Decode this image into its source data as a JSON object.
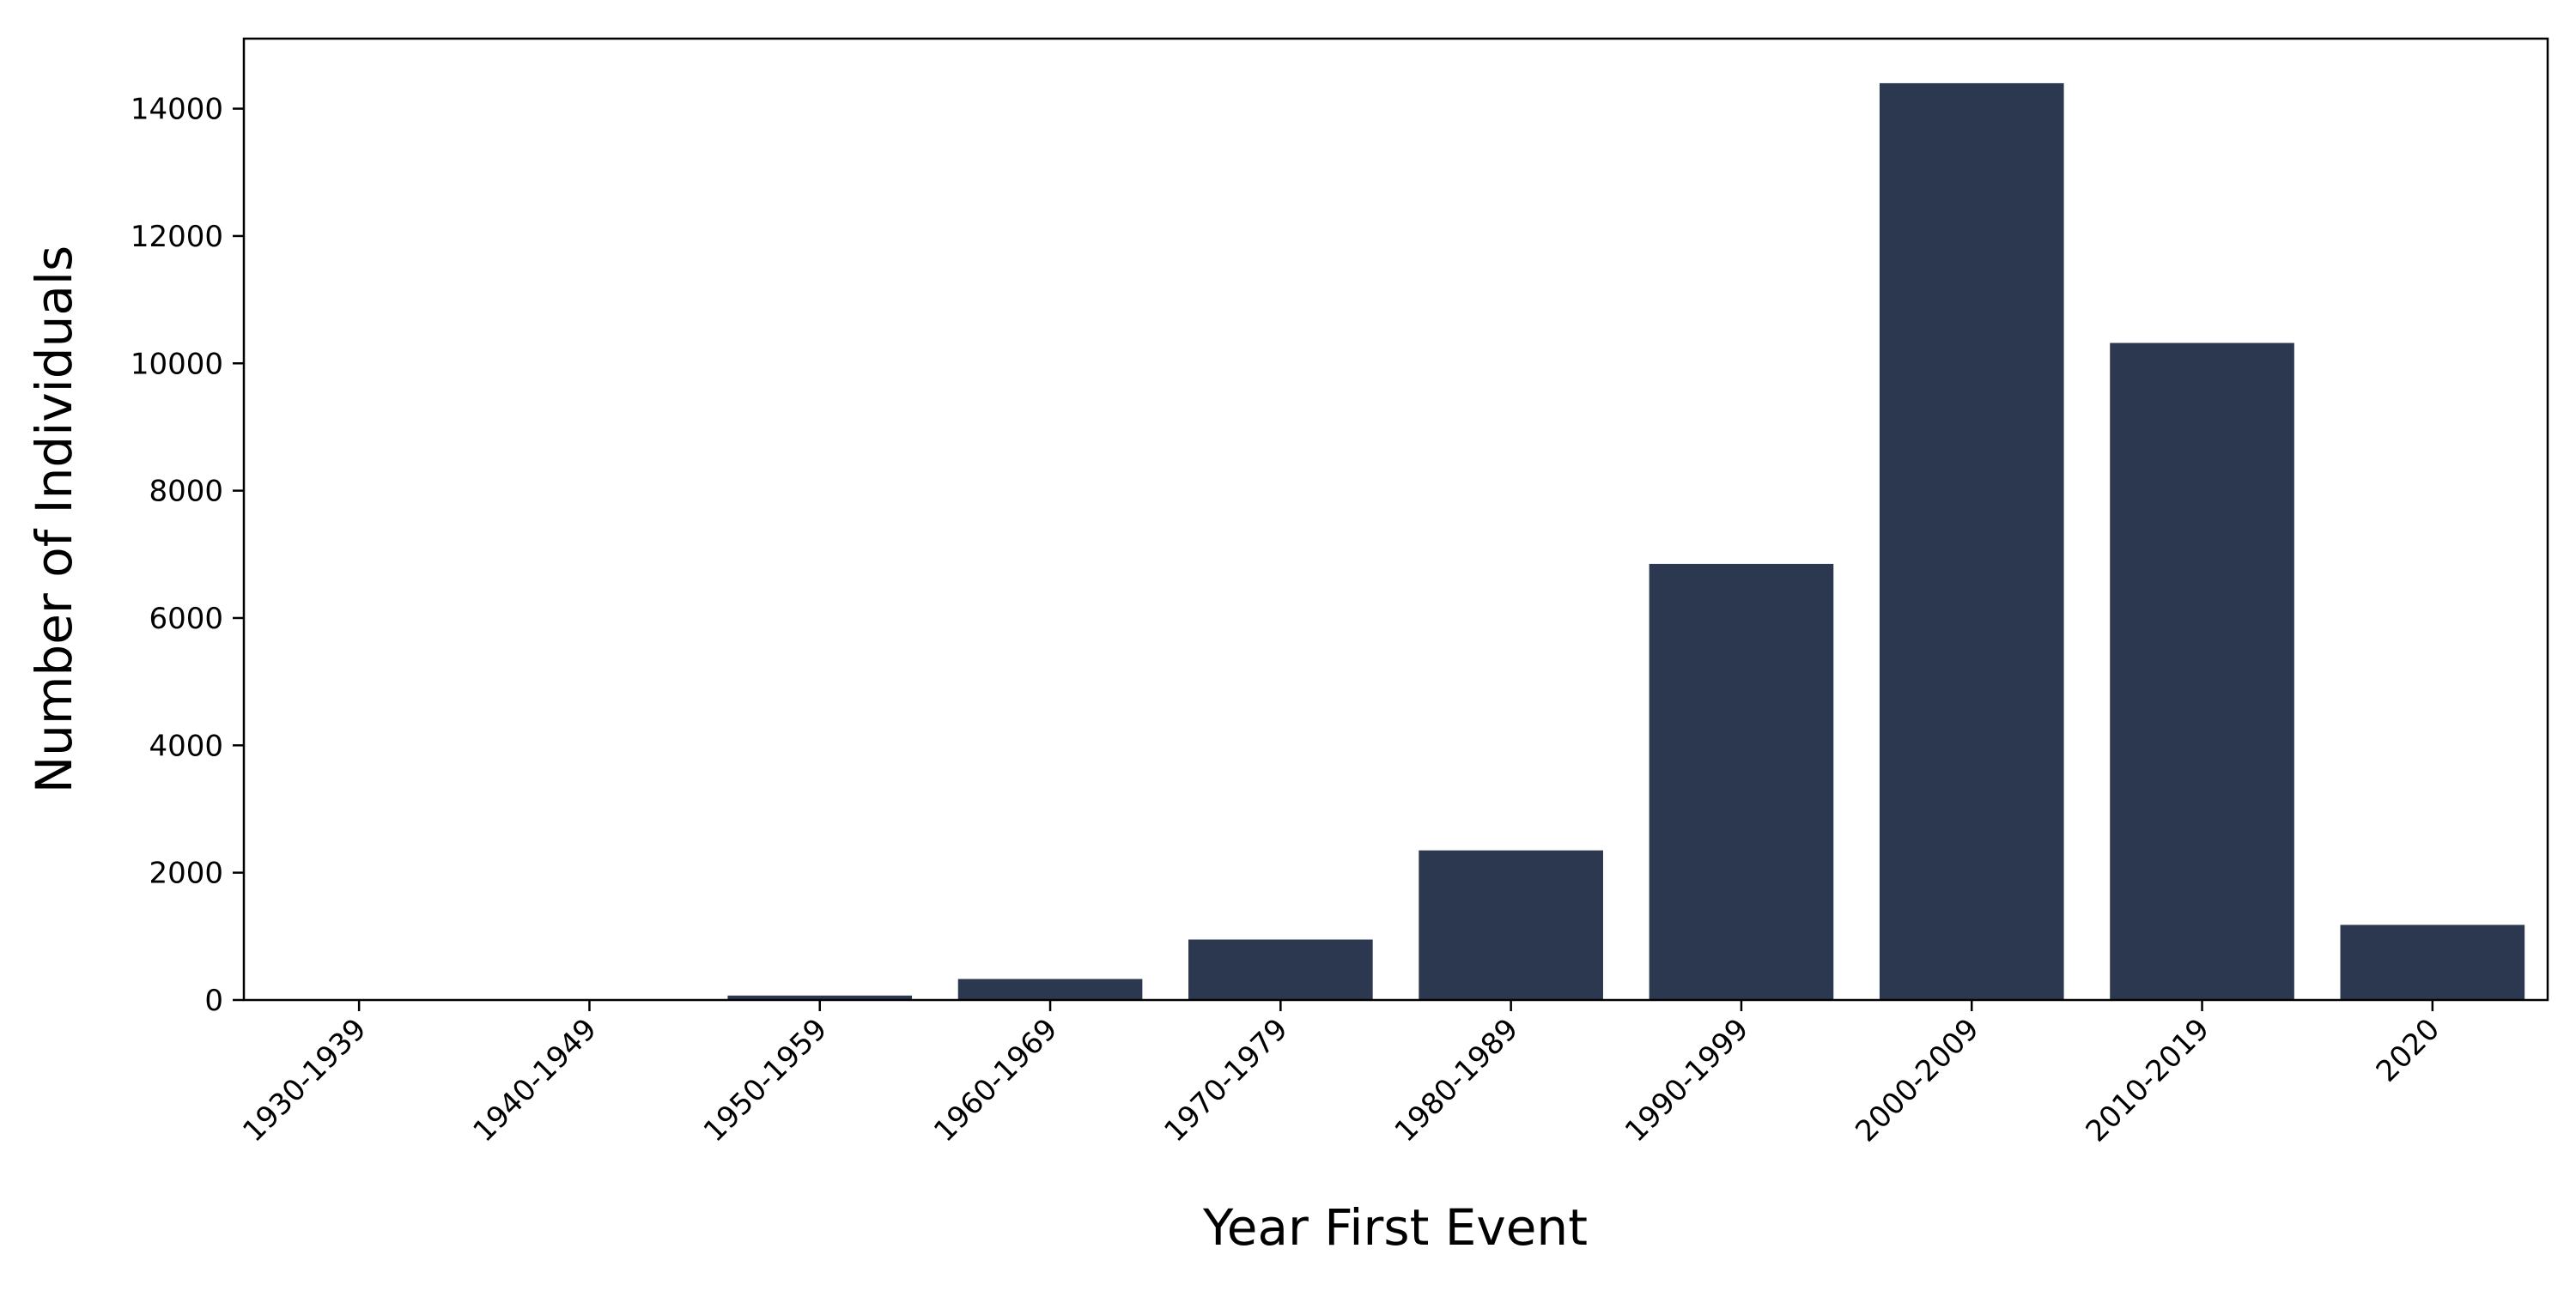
{
  "chart_data": {
    "type": "bar",
    "categories": [
      "1930-1939",
      "1940-1949",
      "1950-1959",
      "1960-1969",
      "1970-1979",
      "1980-1989",
      "1990-1999",
      "2000-2009",
      "2010-2019",
      "2020"
    ],
    "values": [
      3,
      8,
      70,
      330,
      950,
      2350,
      6850,
      14400,
      10320,
      1180
    ],
    "xlabel": "Year First Event",
    "ylabel": "Number of Individuals",
    "ylim": [
      0,
      15100
    ],
    "yticks": [
      0,
      2000,
      4000,
      6000,
      8000,
      10000,
      12000,
      14000
    ],
    "bar_color": "#2c3850",
    "grid": false,
    "legend": "none"
  }
}
